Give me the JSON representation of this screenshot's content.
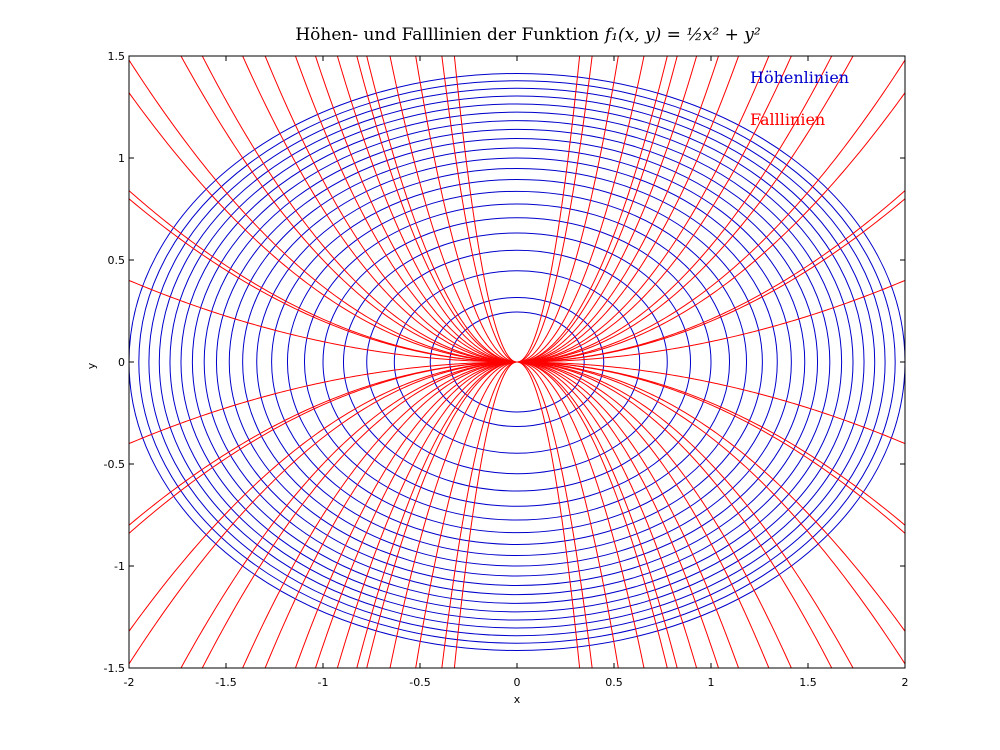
{
  "chart_data": {
    "type": "line",
    "title_prefix": "Höhen- und Falllinien der Funktion",
    "title_math": "f₁(x, y) = ½x² + y²",
    "xlabel": "x",
    "ylabel": "y",
    "xlim": [
      -2,
      2
    ],
    "ylim": [
      -1.5,
      1.5
    ],
    "x_ticks": [
      "-2",
      "-1.5",
      "-1",
      "-0.5",
      "0",
      "0.5",
      "1",
      "1.5",
      "2"
    ],
    "y_ticks": [
      "-1.5",
      "-1",
      "-0.5",
      "0",
      "0.5",
      "1",
      "1.5"
    ],
    "grid": false,
    "legend_position": "top-right",
    "series": [
      {
        "name": "Höhenlinien",
        "color": "#0000cc",
        "kind": "level-curves",
        "levels": [
          0.06,
          0.1,
          0.2,
          0.3,
          0.4,
          0.5,
          0.6,
          0.7,
          0.8,
          0.9,
          1.0,
          1.1,
          1.2,
          1.3,
          1.4,
          1.5,
          1.6,
          1.7,
          1.8,
          1.9,
          2.0
        ]
      },
      {
        "name": "Falllinien",
        "color": "#ff0000",
        "kind": "gradient-curves",
        "curve_family": "y = c · x²",
        "c_values": [
          0.1,
          0.2,
          0.21,
          0.33,
          0.37,
          0.5,
          0.57,
          0.75,
          0.89,
          1.15,
          1.39,
          1.75,
          2.2,
          2.5,
          3.5,
          5.5,
          10,
          14.4
        ]
      }
    ]
  }
}
